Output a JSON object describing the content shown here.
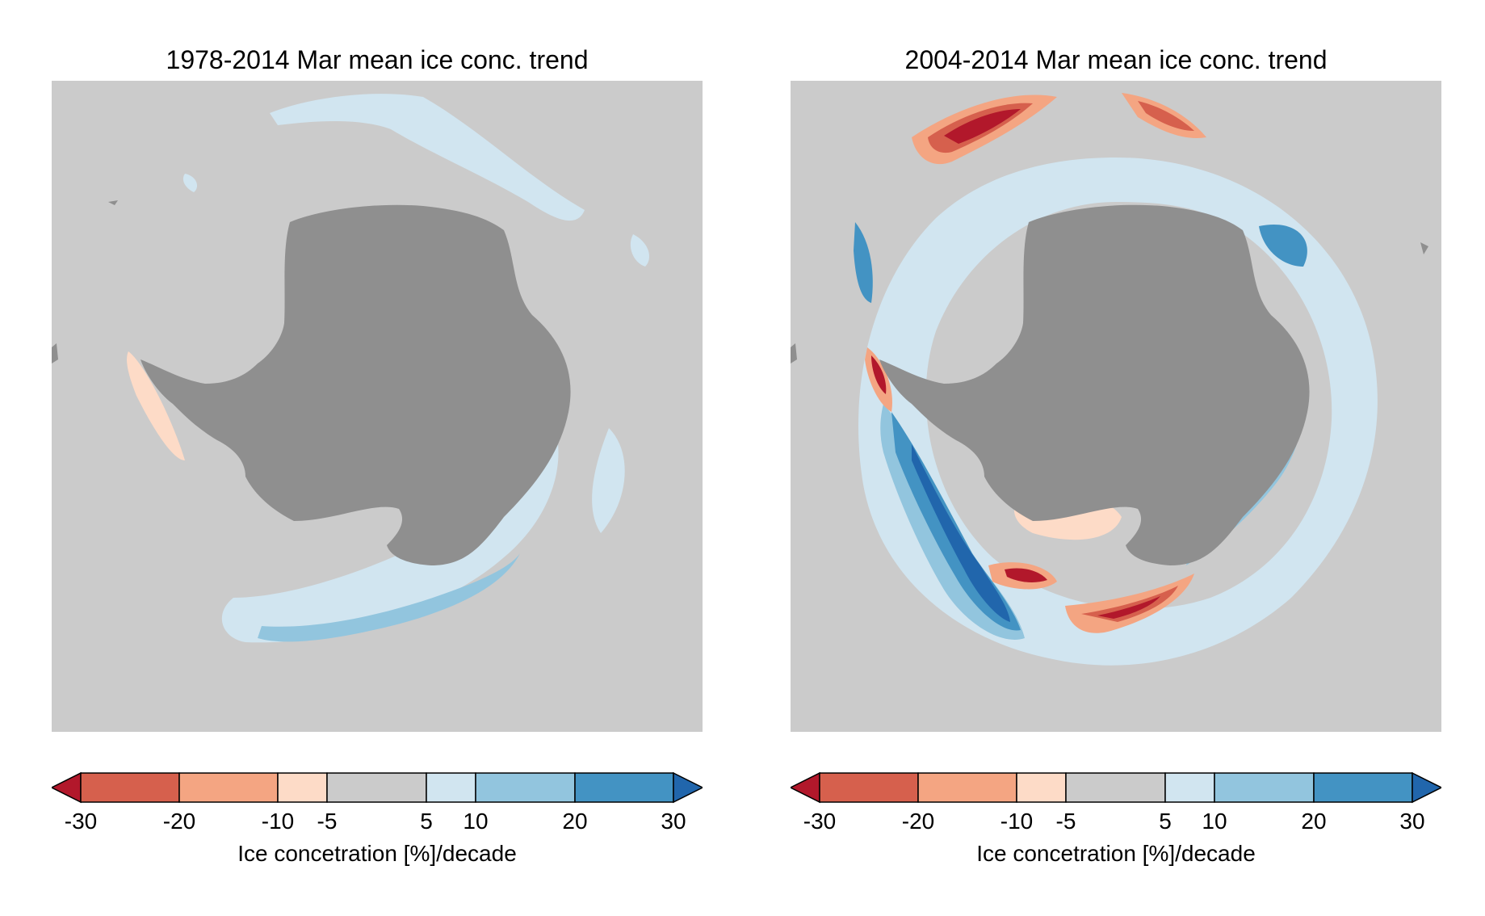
{
  "colors": {
    "ocean": "#cbcbcb",
    "land": "#8f8f8f",
    "extreme_neg": "#b2182b",
    "extreme_pos": "#2166ac"
  },
  "colorbar": {
    "levels": [
      -30,
      -20,
      -10,
      -5,
      5,
      10,
      20,
      30
    ],
    "tick_labels": [
      "-30",
      "-20",
      "-10",
      "-5",
      "5",
      "10",
      "20",
      "30"
    ],
    "bin_colors": [
      "#d6604d",
      "#f4a582",
      "#fddbc7",
      "#cbcbcb",
      "#d1e5f0",
      "#92c5de",
      "#4393c3"
    ],
    "extend": "both",
    "label": "Ice concetration [%]/decade"
  },
  "panels": [
    {
      "title": "1978-2014 Mar mean ice conc. trend"
    },
    {
      "title": "2004-2014 Mar mean ice conc. trend"
    }
  ]
}
